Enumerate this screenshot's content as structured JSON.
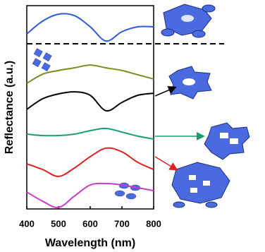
{
  "chart_data": {
    "type": "line",
    "x_label": "Wavelength (nm)",
    "y_label": "Reflectance (a.u.)",
    "x": [
      400,
      450,
      500,
      550,
      600,
      650,
      700,
      750,
      800
    ],
    "series": [
      {
        "color": "#2e5bd8",
        "values": [
          86.1,
          92.4,
          95.8,
          95.1,
          89.6,
          82.6,
          87.2,
          89.6,
          89.6
        ]
      },
      {
        "color": "#7f8a1c",
        "values": [
          61.8,
          66.3,
          68.1,
          69.4,
          70.8,
          69.4,
          68.1,
          66.0,
          63.9
        ]
      },
      {
        "color": "#000000",
        "values": [
          49.0,
          54.2,
          56.6,
          57.6,
          55.9,
          48.3,
          52.4,
          55.9,
          56.9
        ]
      },
      {
        "color": "#1a9e6e",
        "values": [
          36.8,
          36.1,
          36.1,
          36.8,
          38.5,
          39.6,
          37.8,
          35.8,
          34.4
        ]
      },
      {
        "color": "#e02020",
        "values": [
          22.2,
          19.4,
          16.0,
          20.1,
          25.7,
          29.9,
          28.1,
          22.9,
          19.4
        ]
      },
      {
        "color": "#c83cc8",
        "values": [
          8.3,
          3.8,
          0.7,
          6.3,
          11.8,
          12.5,
          11.8,
          10.4,
          9.0
        ]
      }
    ],
    "xlim": [
      400,
      800
    ],
    "xticks": [
      400,
      500,
      600,
      700,
      800
    ],
    "ylim": [
      0,
      100
    ]
  }
}
